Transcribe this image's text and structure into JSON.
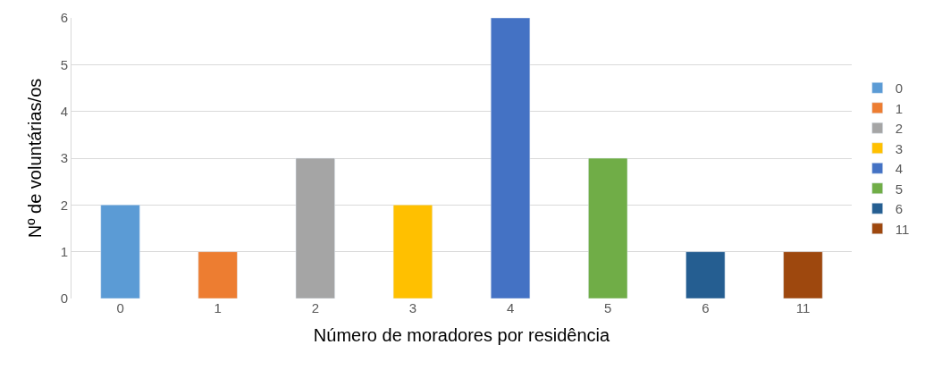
{
  "chart_data": {
    "type": "bar",
    "xlabel": "Número de moradores por residência",
    "ylabel": "Nº de voluntárias/os",
    "categories": [
      "0",
      "1",
      "2",
      "3",
      "4",
      "5",
      "6",
      "11"
    ],
    "series": [
      {
        "name": "0",
        "color": "#5b9bd5",
        "values": [
          2,
          null,
          null,
          null,
          null,
          null,
          null,
          null
        ]
      },
      {
        "name": "1",
        "color": "#ed7d31",
        "values": [
          null,
          1,
          null,
          null,
          null,
          null,
          null,
          null
        ]
      },
      {
        "name": "2",
        "color": "#a5a5a5",
        "values": [
          null,
          null,
          3,
          null,
          null,
          null,
          null,
          null
        ]
      },
      {
        "name": "3",
        "color": "#ffc000",
        "values": [
          null,
          null,
          null,
          2,
          null,
          null,
          null,
          null
        ]
      },
      {
        "name": "4",
        "color": "#4472c4",
        "values": [
          null,
          null,
          null,
          null,
          6,
          null,
          null,
          null
        ]
      },
      {
        "name": "5",
        "color": "#70ad47",
        "values": [
          null,
          null,
          null,
          null,
          null,
          3,
          null,
          null
        ]
      },
      {
        "name": "6",
        "color": "#255e91",
        "values": [
          null,
          null,
          null,
          null,
          null,
          null,
          1,
          null
        ]
      },
      {
        "name": "11",
        "color": "#9e480e",
        "values": [
          null,
          null,
          null,
          null,
          null,
          null,
          null,
          1
        ]
      }
    ],
    "ylim": [
      0,
      6
    ],
    "yticks": [
      0,
      1,
      2,
      3,
      4,
      5,
      6
    ],
    "grid": "y",
    "legend": "right"
  }
}
